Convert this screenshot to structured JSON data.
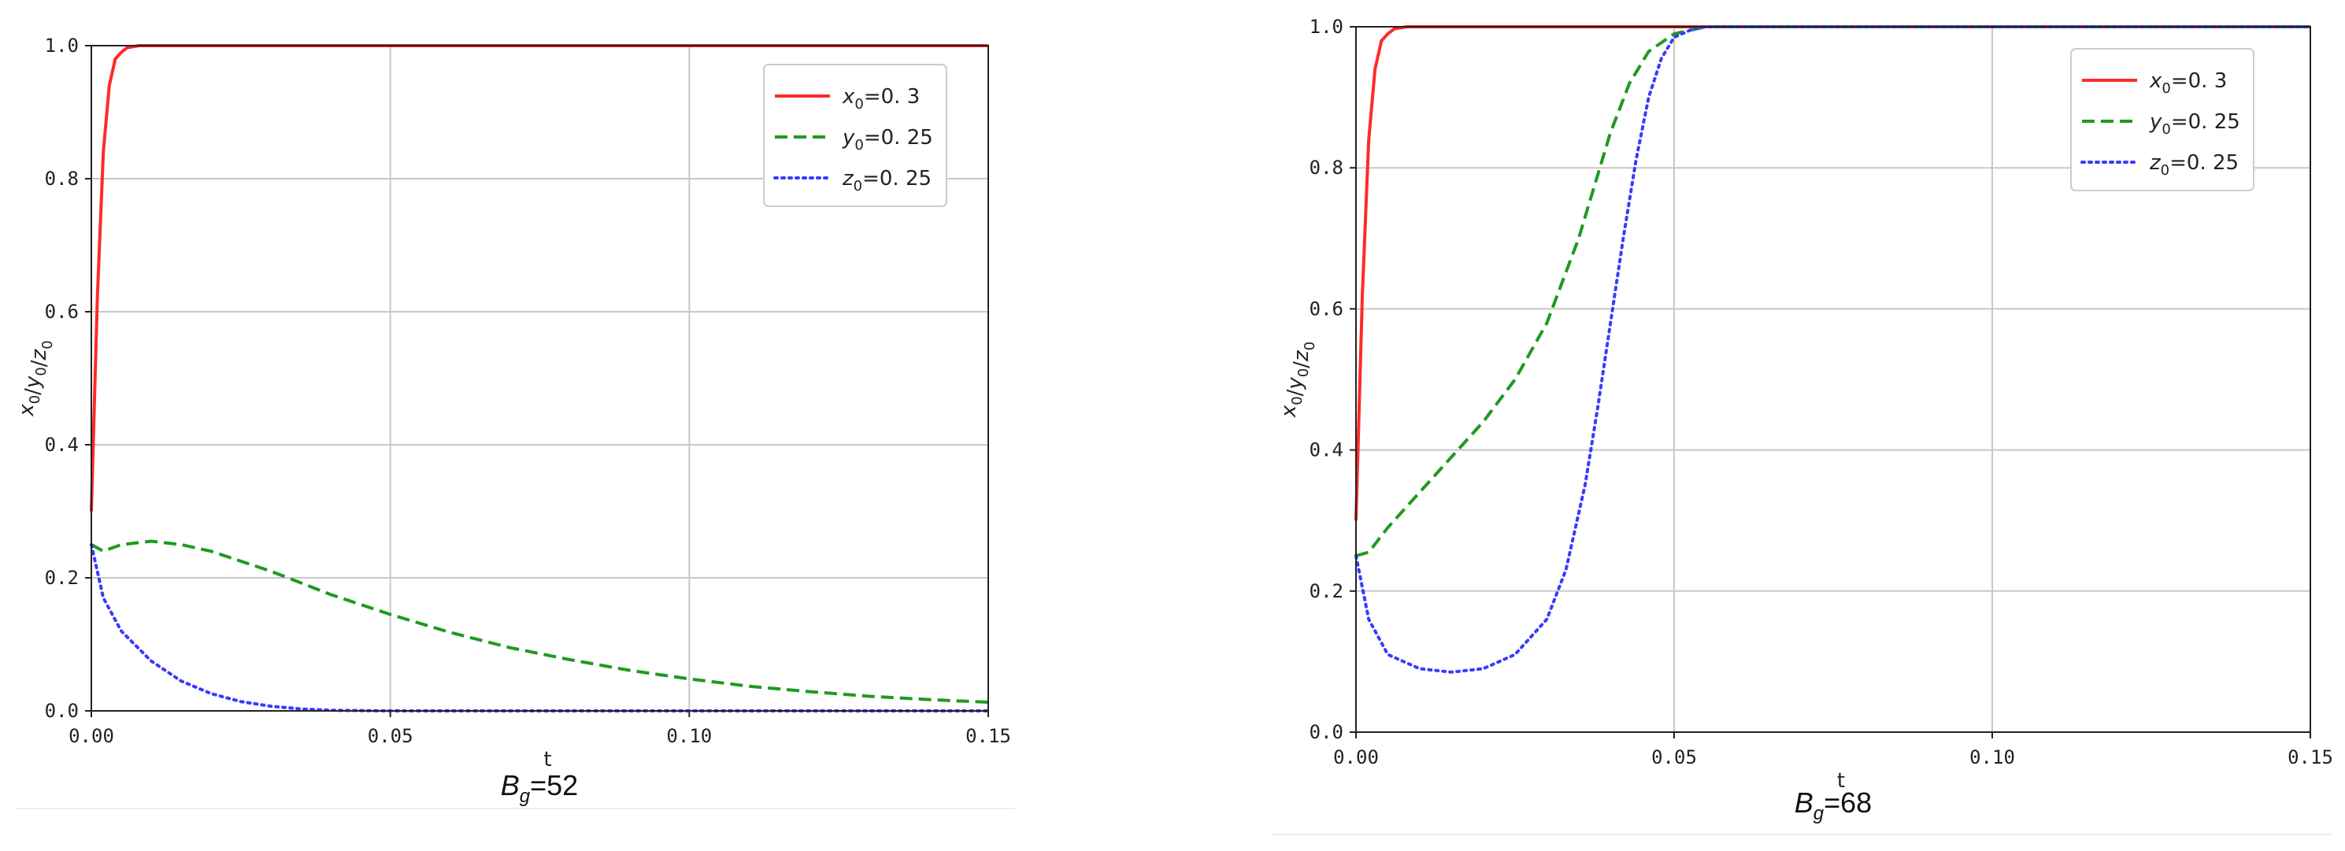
{
  "colors": {
    "x": "#ff2a2a",
    "y": "#1f9a1f",
    "z": "#3a3aff",
    "grid": "#c8c8c8"
  },
  "legend_labels": [
    {
      "sym": "x",
      "sub": "0",
      "val": "=0. 3"
    },
    {
      "sym": "y",
      "sub": "0",
      "val": "=0. 25"
    },
    {
      "sym": "z",
      "sub": "0",
      "val": "=0. 25"
    }
  ],
  "axis_labels": {
    "x": "t",
    "y_parts": [
      "x",
      "0",
      "/",
      "y",
      "0",
      "/",
      "z",
      "0"
    ]
  },
  "chart_data": [
    {
      "type": "line",
      "caption": {
        "base": "B",
        "sub": "g",
        "rest": "=52"
      },
      "xlim": [
        0,
        0.15
      ],
      "ylim": [
        0,
        1.0
      ],
      "xticks": [
        "0.00",
        "0.05",
        "0.10",
        "0.15"
      ],
      "yticks": [
        "0.0",
        "0.2",
        "0.4",
        "0.6",
        "0.8",
        "1.0"
      ],
      "grid": true,
      "legend_position": "top-right",
      "series": [
        {
          "name": "x0=0.3",
          "style": "solid",
          "x": [
            0,
            0.001,
            0.002,
            0.003,
            0.004,
            0.005,
            0.006,
            0.008,
            0.01,
            0.02,
            0.15
          ],
          "y": [
            0.3,
            0.62,
            0.84,
            0.94,
            0.98,
            0.99,
            0.997,
            1.0,
            1.0,
            1.0,
            1.0
          ]
        },
        {
          "name": "y0=0.25",
          "style": "dashed",
          "x": [
            0,
            0.002,
            0.005,
            0.01,
            0.015,
            0.02,
            0.03,
            0.04,
            0.05,
            0.06,
            0.07,
            0.08,
            0.09,
            0.1,
            0.11,
            0.12,
            0.13,
            0.14,
            0.15
          ],
          "y": [
            0.25,
            0.24,
            0.25,
            0.255,
            0.25,
            0.24,
            0.21,
            0.175,
            0.145,
            0.118,
            0.095,
            0.077,
            0.061,
            0.048,
            0.037,
            0.029,
            0.022,
            0.017,
            0.013
          ]
        },
        {
          "name": "z0=0.25",
          "style": "dotted",
          "x": [
            0,
            0.002,
            0.005,
            0.01,
            0.015,
            0.02,
            0.025,
            0.03,
            0.035,
            0.04,
            0.05,
            0.15
          ],
          "y": [
            0.25,
            0.17,
            0.12,
            0.075,
            0.045,
            0.026,
            0.014,
            0.007,
            0.003,
            0.001,
            0.0,
            0.0
          ]
        }
      ]
    },
    {
      "type": "line",
      "caption": {
        "base": "B",
        "sub": "g",
        "rest": "=68"
      },
      "xlim": [
        0,
        0.15
      ],
      "ylim": [
        0,
        1.0
      ],
      "xticks": [
        "0.00",
        "0.05",
        "0.10",
        "0.15"
      ],
      "yticks": [
        "0.0",
        "0.2",
        "0.4",
        "0.6",
        "0.8",
        "1.0"
      ],
      "grid": true,
      "legend_position": "top-right",
      "series": [
        {
          "name": "x0=0.3",
          "style": "solid",
          "x": [
            0,
            0.001,
            0.002,
            0.003,
            0.004,
            0.005,
            0.006,
            0.008,
            0.01,
            0.02,
            0.15
          ],
          "y": [
            0.3,
            0.62,
            0.84,
            0.94,
            0.98,
            0.99,
            0.997,
            1.0,
            1.0,
            1.0,
            1.0
          ]
        },
        {
          "name": "y0=0.25",
          "style": "dashed",
          "x": [
            0,
            0.002,
            0.005,
            0.01,
            0.015,
            0.02,
            0.025,
            0.03,
            0.035,
            0.038,
            0.04,
            0.043,
            0.046,
            0.05,
            0.055,
            0.06,
            0.15
          ],
          "y": [
            0.25,
            0.255,
            0.29,
            0.34,
            0.39,
            0.44,
            0.5,
            0.58,
            0.7,
            0.79,
            0.85,
            0.92,
            0.965,
            0.99,
            1.0,
            1.0,
            1.0
          ]
        },
        {
          "name": "z0=0.25",
          "style": "dotted",
          "x": [
            0,
            0.002,
            0.005,
            0.01,
            0.015,
            0.02,
            0.025,
            0.03,
            0.033,
            0.036,
            0.038,
            0.04,
            0.042,
            0.044,
            0.046,
            0.048,
            0.05,
            0.053,
            0.055,
            0.06,
            0.15
          ],
          "y": [
            0.25,
            0.16,
            0.11,
            0.09,
            0.085,
            0.09,
            0.11,
            0.16,
            0.23,
            0.35,
            0.46,
            0.58,
            0.7,
            0.81,
            0.9,
            0.955,
            0.985,
            0.997,
            1.0,
            1.0,
            1.0
          ]
        }
      ]
    }
  ]
}
